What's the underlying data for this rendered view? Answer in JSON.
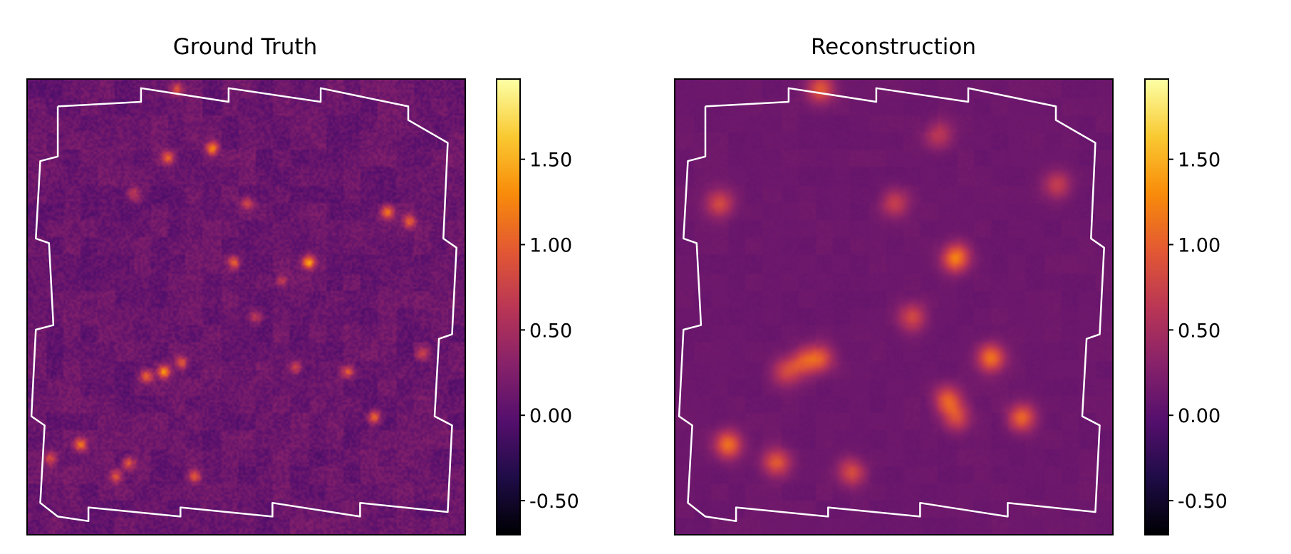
{
  "chart_data": [
    {
      "type": "heatmap",
      "title": "Ground Truth",
      "colormap": "inferno",
      "clim": [
        -0.7,
        1.97
      ],
      "colorbar_ticks": [
        -0.5,
        0.0,
        0.5,
        1.0,
        1.5
      ],
      "colorbar_tick_labels": [
        "-0.50",
        "0.00",
        "0.50",
        "1.00",
        "1.50"
      ],
      "background_value": 0.1,
      "noise_level": 0.12,
      "outline": "survey footprint boundary",
      "outline_color": "#ffffff",
      "peaks": [
        {
          "x": 0.42,
          "y": 0.15,
          "v": 1.1
        },
        {
          "x": 0.32,
          "y": 0.17,
          "v": 0.9
        },
        {
          "x": 0.82,
          "y": 0.29,
          "v": 1.0
        },
        {
          "x": 0.87,
          "y": 0.31,
          "v": 0.9
        },
        {
          "x": 0.64,
          "y": 0.4,
          "v": 1.3
        },
        {
          "x": 0.47,
          "y": 0.4,
          "v": 0.8
        },
        {
          "x": 0.58,
          "y": 0.44,
          "v": 0.6
        },
        {
          "x": 0.31,
          "y": 0.64,
          "v": 1.2
        },
        {
          "x": 0.27,
          "y": 0.65,
          "v": 1.0
        },
        {
          "x": 0.35,
          "y": 0.62,
          "v": 0.8
        },
        {
          "x": 0.73,
          "y": 0.64,
          "v": 0.9
        },
        {
          "x": 0.61,
          "y": 0.63,
          "v": 0.7
        },
        {
          "x": 0.79,
          "y": 0.74,
          "v": 1.0
        },
        {
          "x": 0.12,
          "y": 0.8,
          "v": 1.0
        },
        {
          "x": 0.23,
          "y": 0.84,
          "v": 0.9
        },
        {
          "x": 0.2,
          "y": 0.87,
          "v": 0.8
        },
        {
          "x": 0.38,
          "y": 0.87,
          "v": 0.8
        },
        {
          "x": 0.05,
          "y": 0.83,
          "v": 0.7
        },
        {
          "x": 0.34,
          "y": 0.02,
          "v": 0.8
        },
        {
          "x": 0.24,
          "y": 0.25,
          "v": 0.6
        },
        {
          "x": 0.52,
          "y": 0.52,
          "v": 0.6
        },
        {
          "x": 0.9,
          "y": 0.6,
          "v": 0.6
        },
        {
          "x": 0.5,
          "y": 0.27,
          "v": 0.7
        }
      ]
    },
    {
      "type": "heatmap",
      "title": "Reconstruction",
      "colormap": "inferno",
      "clim": [
        -0.7,
        1.97
      ],
      "colorbar_ticks": [
        -0.5,
        0.0,
        0.5,
        1.0,
        1.5
      ],
      "colorbar_tick_labels": [
        "-0.50",
        "0.00",
        "0.50",
        "1.00",
        "1.50"
      ],
      "background_value": 0.12,
      "noise_level": 0.02,
      "outline": "survey footprint boundary",
      "outline_color": "#ffffff",
      "peaks": [
        {
          "x": 0.64,
          "y": 0.39,
          "v": 1.1
        },
        {
          "x": 0.54,
          "y": 0.52,
          "v": 0.7
        },
        {
          "x": 0.72,
          "y": 0.61,
          "v": 1.0
        },
        {
          "x": 0.33,
          "y": 0.61,
          "v": 0.8
        },
        {
          "x": 0.29,
          "y": 0.62,
          "v": 0.7
        },
        {
          "x": 0.25,
          "y": 0.64,
          "v": 0.6
        },
        {
          "x": 0.62,
          "y": 0.7,
          "v": 0.8
        },
        {
          "x": 0.79,
          "y": 0.74,
          "v": 0.9
        },
        {
          "x": 0.64,
          "y": 0.74,
          "v": 0.7
        },
        {
          "x": 0.12,
          "y": 0.8,
          "v": 1.0
        },
        {
          "x": 0.23,
          "y": 0.84,
          "v": 0.8
        },
        {
          "x": 0.4,
          "y": 0.86,
          "v": 0.7
        },
        {
          "x": 0.1,
          "y": 0.27,
          "v": 0.7
        },
        {
          "x": 0.5,
          "y": 0.27,
          "v": 0.6
        },
        {
          "x": 0.33,
          "y": 0.02,
          "v": 0.8
        },
        {
          "x": 0.87,
          "y": 0.23,
          "v": 0.6
        },
        {
          "x": 0.6,
          "y": 0.12,
          "v": 0.5
        }
      ]
    }
  ]
}
